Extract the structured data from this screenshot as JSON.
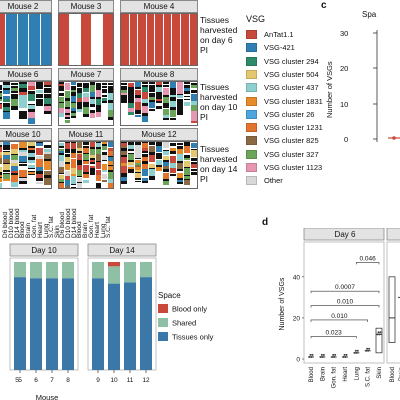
{
  "figure": {
    "panel_letters": [
      "c",
      "d"
    ],
    "legend_title": "VSG",
    "legend": [
      {
        "label": "AnTat1.1",
        "color": "#c8493c"
      },
      {
        "label": "VSG-421",
        "color": "#2f7fb2"
      },
      {
        "label": "VSG cluster 294",
        "color": "#2e8a68"
      },
      {
        "label": "VSG cluster 504",
        "color": "#e4c870"
      },
      {
        "label": "VSG cluster 437",
        "color": "#8ecfcf"
      },
      {
        "label": "VSG cluster 1831",
        "color": "#e78a2a"
      },
      {
        "label": "VSG cluster 26",
        "color": "#4aa6dd"
      },
      {
        "label": "VSG cluster 1231",
        "color": "#e3742e"
      },
      {
        "label": "VSG cluster 825",
        "color": "#8b6a43"
      },
      {
        "label": "VSG cluster 327",
        "color": "#6aa55a"
      },
      {
        "label": "VSG cluster 1123",
        "color": "#e897b3"
      },
      {
        "label": "Other",
        "color": "#d8d8d8"
      }
    ],
    "row_labels": [
      "Tissues\nharvested\non day 6\nPI",
      "Tissues\nharvested\non day 10\nPI",
      "Tissues\nharvested\non day 14\nPI"
    ],
    "mouse_rows": [
      [
        {
          "label": "Mouse 2"
        },
        {
          "label": "Mouse 3"
        },
        {
          "label": "Mouse 4"
        }
      ],
      [
        {
          "label": "Mouse 6"
        },
        {
          "label": "Mouse 7"
        },
        {
          "label": "Mouse 8"
        }
      ],
      [
        {
          "label": "Mouse 10"
        },
        {
          "label": "Mouse 11"
        },
        {
          "label": "Mouse 12"
        }
      ]
    ],
    "tissue_labels_left": [
      "D6 blood",
      "D10 blood",
      "D14 blood",
      "Blood",
      "Brain",
      "Gon. fat",
      "Heart",
      "Lung",
      "S.C. fat",
      "Skin"
    ],
    "tissue_labels_right": [
      "D6 blood",
      "D10 blood",
      "D14 blood",
      "Blood",
      "Brain",
      "Gon. fat",
      "Heart",
      "Lung",
      "S.C. fat"
    ],
    "panel_c_axis": {
      "ylabel": "Number of VSGs",
      "yticks": [
        "30",
        "20",
        "10",
        "0"
      ],
      "header": "Spa"
    }
  },
  "chart_data": [
    {
      "type": "bar",
      "title": "",
      "xlabel": "Mouse",
      "ylabel": "",
      "legend_title": "Space",
      "legend_position": "right",
      "facets": [
        "Day 10",
        "Day 14"
      ],
      "categories": [
        "5",
        "6",
        "7",
        "8",
        "9",
        "10",
        "11",
        "12"
      ],
      "series": [
        {
          "name": "Tissues only",
          "color": "#3b78a8",
          "values": [
            0.86,
            0.85,
            0.85,
            0.85,
            0.85,
            0.8,
            0.81,
            0.86
          ]
        },
        {
          "name": "Shared",
          "color": "#8fc0a6",
          "values": [
            0.14,
            0.15,
            0.15,
            0.15,
            0.15,
            0.16,
            0.19,
            0.14
          ]
        },
        {
          "name": "Blood only",
          "color": "#c8493c",
          "values": [
            0,
            0,
            0,
            0,
            0,
            0.04,
            0,
            0
          ]
        }
      ]
    },
    {
      "type": "scatter",
      "title": "",
      "facet": "Day 6",
      "ylabel": "Number of VSGs",
      "yticks": [
        "0",
        "20",
        "40"
      ],
      "categories": [
        "Blood",
        "Brain",
        "Gon. fat",
        "Heart",
        "Lung",
        "S.C. fat",
        "Skin"
      ],
      "medians": [
        1,
        1,
        1,
        1,
        3,
        4,
        12
      ],
      "annotations": [
        {
          "label": "0.023",
          "from": "Blood",
          "to": "Lung"
        },
        {
          "label": "0.010",
          "from": "Blood",
          "to": "S.C. fat"
        },
        {
          "label": "0.010",
          "from": "Blood",
          "to": "Skin"
        },
        {
          "label": "0.0007",
          "from": "Blood",
          "to": "Skin"
        },
        {
          "label": "0.046",
          "from": "Lung",
          "to": "Skin"
        }
      ],
      "right_facet_categories": [
        "Blood",
        "Brain"
      ]
    }
  ]
}
